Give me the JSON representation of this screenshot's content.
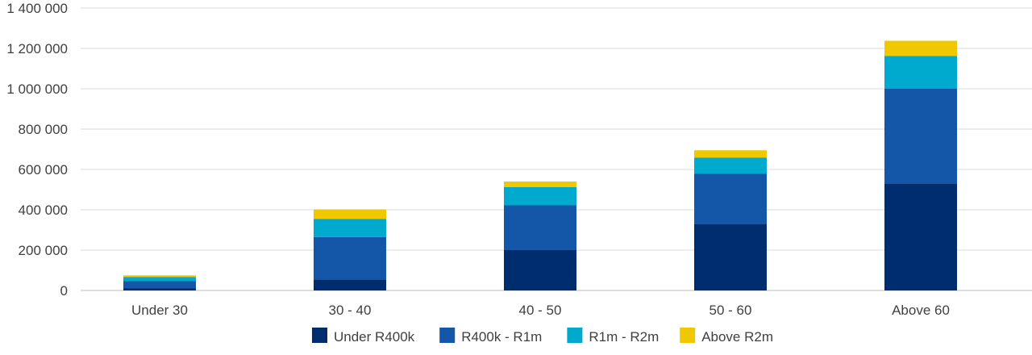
{
  "chart_data": {
    "type": "bar",
    "stacked": true,
    "categories": [
      "Under 30",
      "30 - 40",
      "40 - 50",
      "50 - 60",
      "Above 60"
    ],
    "series": [
      {
        "name": "Under R400k",
        "color": "#002d6e",
        "values": [
          10000,
          55000,
          200000,
          328000,
          528000
        ]
      },
      {
        "name": "R400k - R1m",
        "color": "#1456a8",
        "values": [
          36000,
          210000,
          222000,
          250000,
          472000
        ]
      },
      {
        "name": "R1m - R2m",
        "color": "#00a9ce",
        "values": [
          20000,
          90000,
          90000,
          80000,
          163000
        ]
      },
      {
        "name": "Above R2m",
        "color": "#f0c800",
        "values": [
          9000,
          47000,
          28000,
          37000,
          75000
        ]
      }
    ],
    "yticks": [
      0,
      200000,
      400000,
      600000,
      800000,
      1000000,
      1200000,
      1400000
    ],
    "ytick_labels": [
      "0",
      "200 000",
      "400 000",
      "600 000",
      "800 000",
      "1 000 000",
      "1 200 000",
      "1 400 000"
    ],
    "ylim": [
      0,
      1400000
    ],
    "grid": true,
    "legend_position": "bottom-center",
    "title": "",
    "xlabel": "",
    "ylabel": ""
  }
}
